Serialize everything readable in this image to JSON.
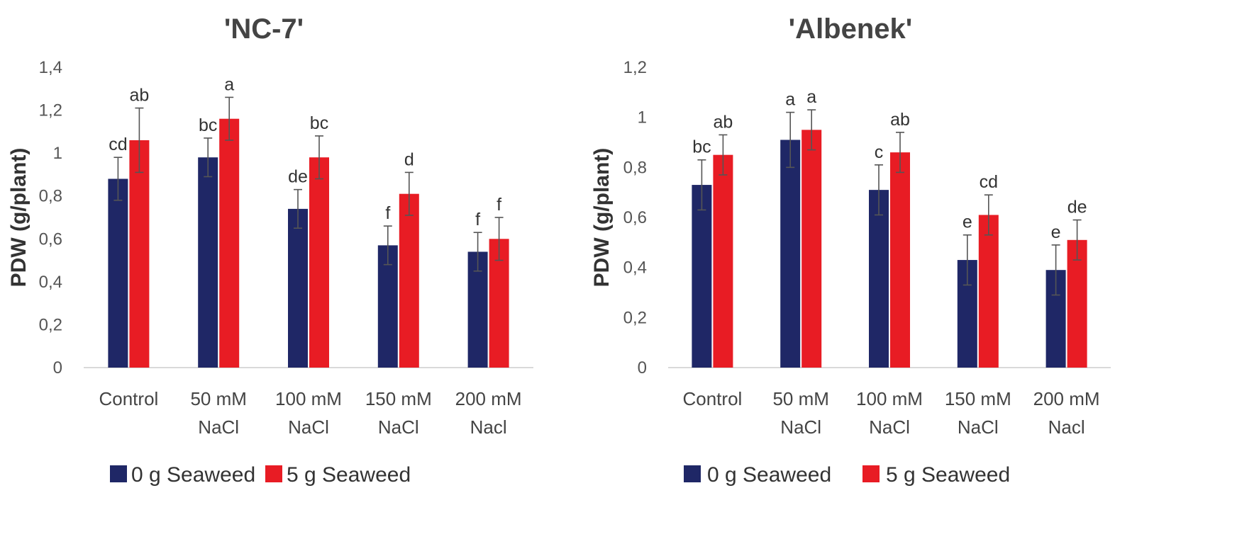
{
  "colors": {
    "series0": "#1f2766",
    "series1": "#e81c24",
    "axis": "#d9d9d9",
    "error": "#555555"
  },
  "chart_data": [
    {
      "type": "bar",
      "title": "'NC-7'",
      "ylabel": "PDW (g/plant)",
      "xlabel": "",
      "ylim": [
        0,
        1.4
      ],
      "yticks": [
        "0",
        "0,2",
        "0,4",
        "0,6",
        "0,8",
        "1",
        "1,2",
        "1,4"
      ],
      "categories": [
        [
          "Control"
        ],
        [
          "50 mM",
          "NaCl"
        ],
        [
          "100 mM",
          "NaCl"
        ],
        [
          "150 mM",
          "NaCl"
        ],
        [
          "200 mM",
          "Nacl"
        ]
      ],
      "legend_position": "bottom-left",
      "series": [
        {
          "name": "0 g Seaweed",
          "values": [
            0.88,
            0.98,
            0.74,
            0.57,
            0.54
          ],
          "errors": [
            0.1,
            0.09,
            0.09,
            0.09,
            0.09
          ],
          "letters": [
            "cd",
            "bc",
            "de",
            "f",
            "f"
          ]
        },
        {
          "name": "5 g Seaweed",
          "values": [
            1.06,
            1.16,
            0.98,
            0.81,
            0.6
          ],
          "errors": [
            0.15,
            0.1,
            0.1,
            0.1,
            0.1
          ],
          "letters": [
            "ab",
            "a",
            "bc",
            "d",
            "f"
          ]
        }
      ]
    },
    {
      "type": "bar",
      "title": "'Albenek'",
      "ylabel": "PDW (g/plant)",
      "xlabel": "",
      "ylim": [
        0,
        1.2
      ],
      "yticks": [
        "0",
        "0,2",
        "0,4",
        "0,6",
        "0,8",
        "1",
        "1,2"
      ],
      "categories": [
        [
          "Control"
        ],
        [
          "50 mM",
          "NaCl"
        ],
        [
          "100 mM",
          "NaCl"
        ],
        [
          "150 mM",
          "NaCl"
        ],
        [
          "200 mM",
          "Nacl"
        ]
      ],
      "legend_position": "bottom-left",
      "series": [
        {
          "name": "0 g Seaweed",
          "values": [
            0.73,
            0.91,
            0.71,
            0.43,
            0.39
          ],
          "errors": [
            0.1,
            0.11,
            0.1,
            0.1,
            0.1
          ],
          "letters": [
            "bc",
            "a",
            "c",
            "e",
            "e"
          ]
        },
        {
          "name": "5 g Seaweed",
          "values": [
            0.85,
            0.95,
            0.86,
            0.61,
            0.51
          ],
          "errors": [
            0.08,
            0.08,
            0.08,
            0.08,
            0.08
          ],
          "letters": [
            "ab",
            "a",
            "ab",
            "cd",
            "de"
          ]
        }
      ]
    }
  ]
}
